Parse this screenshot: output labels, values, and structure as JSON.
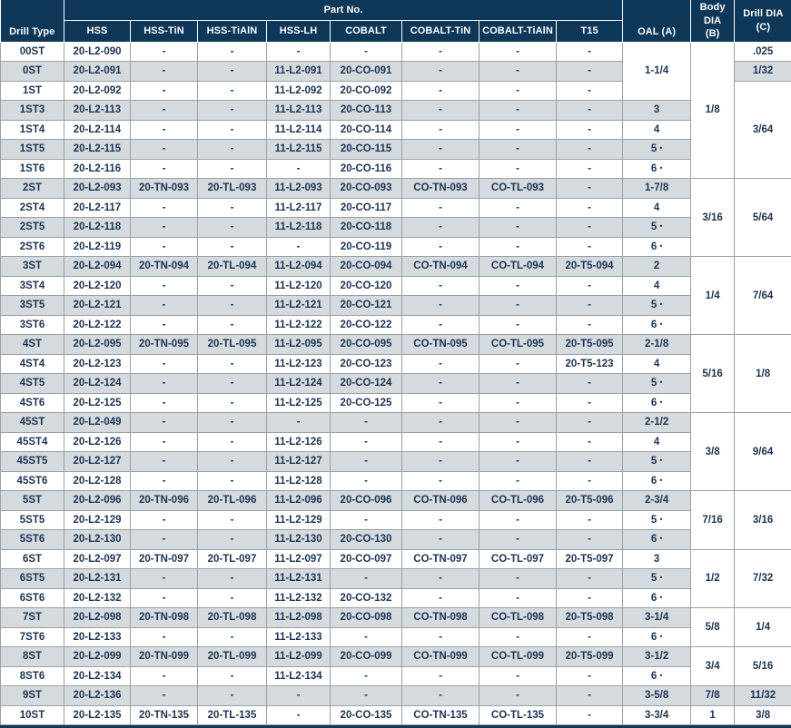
{
  "table": {
    "header": {
      "drill_type": "Drill Type",
      "part_group": "Part No.",
      "part_columns": [
        "HSS",
        "HSS-TiN",
        "HSS-TiAlN",
        "HSS-LH",
        "COBALT",
        "COBALT-TiN",
        "COBALT-TiAlN",
        "T15"
      ],
      "oal": "OAL (A)",
      "body_dia": "Body DIA\n(B)",
      "drill_dia": "Drill DIA\n(C)"
    },
    "colors": {
      "header_bg": "#0e3859",
      "row_alt_bg": "#d4dade",
      "grid_line": "#99a1a7",
      "text": "#1c3453"
    },
    "rows": [
      {
        "type": "00ST",
        "parts": [
          "20-L2-090",
          "-",
          "-",
          "-",
          "-",
          "-",
          "-",
          "-"
        ],
        "oal": {
          "v": "1-1/4",
          "span": 3
        },
        "body": {
          "v": "1/8",
          "span": 7
        },
        "drill": {
          "v": ".025",
          "span": 1
        }
      },
      {
        "type": "0ST",
        "parts": [
          "20-L2-091",
          "-",
          "-",
          "11-L2-091",
          "20-CO-091",
          "-",
          "-",
          "-"
        ],
        "drill": {
          "v": "1/32",
          "span": 1
        }
      },
      {
        "type": "1ST",
        "parts": [
          "20-L2-092",
          "-",
          "-",
          "11-L2-092",
          "20-CO-092",
          "-",
          "-",
          "-"
        ],
        "drill": {
          "v": "3/64",
          "span": 5
        }
      },
      {
        "type": "1ST3",
        "parts": [
          "20-L2-113",
          "-",
          "-",
          "11-L2-113",
          "20-CO-113",
          "-",
          "-",
          "-"
        ],
        "oal": {
          "v": "3",
          "span": 1
        }
      },
      {
        "type": "1ST4",
        "parts": [
          "20-L2-114",
          "-",
          "-",
          "11-L2-114",
          "20-CO-114",
          "-",
          "-",
          "-"
        ],
        "oal": {
          "v": "4",
          "span": 1
        }
      },
      {
        "type": "1ST5",
        "parts": [
          "20-L2-115",
          "-",
          "-",
          "11-L2-115",
          "20-CO-115",
          "-",
          "-",
          "-"
        ],
        "oal": {
          "v": "5 •",
          "span": 1
        }
      },
      {
        "type": "1ST6",
        "parts": [
          "20-L2-116",
          "-",
          "-",
          "-",
          "20-CO-116",
          "-",
          "-",
          "-"
        ],
        "oal": {
          "v": "6 •",
          "span": 1
        }
      },
      {
        "type": "2ST",
        "parts": [
          "20-L2-093",
          "20-TN-093",
          "20-TL-093",
          "11-L2-093",
          "20-CO-093",
          "CO-TN-093",
          "CO-TL-093",
          "-"
        ],
        "oal": {
          "v": "1-7/8",
          "span": 1
        },
        "body": {
          "v": "3/16",
          "span": 4
        },
        "drill": {
          "v": "5/64",
          "span": 4
        }
      },
      {
        "type": "2ST4",
        "parts": [
          "20-L2-117",
          "-",
          "-",
          "11-L2-117",
          "20-CO-117",
          "-",
          "-",
          "-"
        ],
        "oal": {
          "v": "4",
          "span": 1
        }
      },
      {
        "type": "2ST5",
        "parts": [
          "20-L2-118",
          "-",
          "-",
          "11-L2-118",
          "20-CO-118",
          "-",
          "-",
          "-"
        ],
        "oal": {
          "v": "5 •",
          "span": 1
        }
      },
      {
        "type": "2ST6",
        "parts": [
          "20-L2-119",
          "-",
          "-",
          "-",
          "20-CO-119",
          "-",
          "-",
          "-"
        ],
        "oal": {
          "v": "6 •",
          "span": 1
        }
      },
      {
        "type": "3ST",
        "parts": [
          "20-L2-094",
          "20-TN-094",
          "20-TL-094",
          "11-L2-094",
          "20-CO-094",
          "CO-TN-094",
          "CO-TL-094",
          "20-T5-094"
        ],
        "oal": {
          "v": "2",
          "span": 1
        },
        "body": {
          "v": "1/4",
          "span": 4
        },
        "drill": {
          "v": "7/64",
          "span": 4
        }
      },
      {
        "type": "3ST4",
        "parts": [
          "20-L2-120",
          "-",
          "-",
          "11-L2-120",
          "20-CO-120",
          "-",
          "-",
          "-"
        ],
        "oal": {
          "v": "4",
          "span": 1
        }
      },
      {
        "type": "3ST5",
        "parts": [
          "20-L2-121",
          "-",
          "-",
          "11-L2-121",
          "20-CO-121",
          "-",
          "-",
          "-"
        ],
        "oal": {
          "v": "5 •",
          "span": 1
        }
      },
      {
        "type": "3ST6",
        "parts": [
          "20-L2-122",
          "-",
          "-",
          "11-L2-122",
          "20-CO-122",
          "-",
          "-",
          "-"
        ],
        "oal": {
          "v": "6 •",
          "span": 1
        }
      },
      {
        "type": "4ST",
        "parts": [
          "20-L2-095",
          "20-TN-095",
          "20-TL-095",
          "11-L2-095",
          "20-CO-095",
          "CO-TN-095",
          "CO-TL-095",
          "20-T5-095"
        ],
        "oal": {
          "v": "2-1/8",
          "span": 1
        },
        "body": {
          "v": "5/16",
          "span": 4
        },
        "drill": {
          "v": "1/8",
          "span": 4
        }
      },
      {
        "type": "4ST4",
        "parts": [
          "20-L2-123",
          "-",
          "-",
          "11-L2-123",
          "20-CO-123",
          "-",
          "-",
          "20-T5-123"
        ],
        "oal": {
          "v": "4",
          "span": 1
        }
      },
      {
        "type": "4ST5",
        "parts": [
          "20-L2-124",
          "-",
          "-",
          "11-L2-124",
          "20-CO-124",
          "-",
          "-",
          "-"
        ],
        "oal": {
          "v": "5 •",
          "span": 1
        }
      },
      {
        "type": "4ST6",
        "parts": [
          "20-L2-125",
          "-",
          "-",
          "11-L2-125",
          "20-CO-125",
          "-",
          "-",
          "-"
        ],
        "oal": {
          "v": "6 •",
          "span": 1
        }
      },
      {
        "type": "45ST",
        "parts": [
          "20-L2-049",
          "-",
          "-",
          "-",
          "-",
          "-",
          "-",
          "-"
        ],
        "oal": {
          "v": "2-1/2",
          "span": 1
        },
        "body": {
          "v": "3/8",
          "span": 4
        },
        "drill": {
          "v": "9/64",
          "span": 4
        }
      },
      {
        "type": "45ST4",
        "parts": [
          "20-L2-126",
          "-",
          "-",
          "11-L2-126",
          "-",
          "-",
          "-",
          "-"
        ],
        "oal": {
          "v": "4",
          "span": 1
        }
      },
      {
        "type": "45ST5",
        "parts": [
          "20-L2-127",
          "-",
          "-",
          "11-L2-127",
          "-",
          "-",
          "-",
          "-"
        ],
        "oal": {
          "v": "5 •",
          "span": 1
        }
      },
      {
        "type": "45ST6",
        "parts": [
          "20-L2-128",
          "-",
          "-",
          "11-L2-128",
          "-",
          "-",
          "-",
          "-"
        ],
        "oal": {
          "v": "6 •",
          "span": 1
        }
      },
      {
        "type": "5ST",
        "parts": [
          "20-L2-096",
          "20-TN-096",
          "20-TL-096",
          "11-L2-096",
          "20-CO-096",
          "CO-TN-096",
          "CO-TL-096",
          "20-T5-096"
        ],
        "oal": {
          "v": "2-3/4",
          "span": 1
        },
        "body": {
          "v": "7/16",
          "span": 3
        },
        "drill": {
          "v": "3/16",
          "span": 3
        }
      },
      {
        "type": "5ST5",
        "parts": [
          "20-L2-129",
          "-",
          "-",
          "11-L2-129",
          "-",
          "-",
          "-",
          "-"
        ],
        "oal": {
          "v": "5 •",
          "span": 1
        }
      },
      {
        "type": "5ST6",
        "parts": [
          "20-L2-130",
          "-",
          "-",
          "11-L2-130",
          "20-CO-130",
          "-",
          "-",
          "-"
        ],
        "oal": {
          "v": "6 •",
          "span": 1
        }
      },
      {
        "type": "6ST",
        "parts": [
          "20-L2-097",
          "20-TN-097",
          "20-TL-097",
          "11-L2-097",
          "20-CO-097",
          "CO-TN-097",
          "CO-TL-097",
          "20-T5-097"
        ],
        "oal": {
          "v": "3",
          "span": 1
        },
        "body": {
          "v": "1/2",
          "span": 3
        },
        "drill": {
          "v": "7/32",
          "span": 3
        }
      },
      {
        "type": "6ST5",
        "parts": [
          "20-L2-131",
          "-",
          "-",
          "11-L2-131",
          "-",
          "-",
          "-",
          "-"
        ],
        "oal": {
          "v": "5 •",
          "span": 1
        }
      },
      {
        "type": "6ST6",
        "parts": [
          "20-L2-132",
          "-",
          "-",
          "11-L2-132",
          "20-CO-132",
          "-",
          "-",
          "-"
        ],
        "oal": {
          "v": "6 •",
          "span": 1
        }
      },
      {
        "type": "7ST",
        "parts": [
          "20-L2-098",
          "20-TN-098",
          "20-TL-098",
          "11-L2-098",
          "20-CO-098",
          "CO-TN-098",
          "CO-TL-098",
          "20-T5-098"
        ],
        "oal": {
          "v": "3-1/4",
          "span": 1
        },
        "body": {
          "v": "5/8",
          "span": 2
        },
        "drill": {
          "v": "1/4",
          "span": 2
        }
      },
      {
        "type": "7ST6",
        "parts": [
          "20-L2-133",
          "-",
          "-",
          "11-L2-133",
          "-",
          "-",
          "-",
          "-"
        ],
        "oal": {
          "v": "6 •",
          "span": 1
        }
      },
      {
        "type": "8ST",
        "parts": [
          "20-L2-099",
          "20-TN-099",
          "20-TL-099",
          "11-L2-099",
          "20-CO-099",
          "CO-TN-099",
          "CO-TL-099",
          "20-T5-099"
        ],
        "oal": {
          "v": "3-1/2",
          "span": 1
        },
        "body": {
          "v": "3/4",
          "span": 2
        },
        "drill": {
          "v": "5/16",
          "span": 2
        }
      },
      {
        "type": "8ST6",
        "parts": [
          "20-L2-134",
          "-",
          "-",
          "11-L2-134",
          "-",
          "-",
          "-",
          "-"
        ],
        "oal": {
          "v": "6 •",
          "span": 1
        }
      },
      {
        "type": "9ST",
        "parts": [
          "20-L2-136",
          "-",
          "-",
          "-",
          "-",
          "-",
          "-",
          "-"
        ],
        "oal": {
          "v": "3-5/8",
          "span": 1
        },
        "body": {
          "v": "7/8",
          "span": 1
        },
        "drill": {
          "v": "11/32",
          "span": 1
        }
      },
      {
        "type": "10ST",
        "parts": [
          "20-L2-135",
          "20-TN-135",
          "20-TL-135",
          "-",
          "20-CO-135",
          "CO-TN-135",
          "CO-TL-135",
          "-"
        ],
        "oal": {
          "v": "3-3/4",
          "span": 1
        },
        "body": {
          "v": "1",
          "span": 1
        },
        "drill": {
          "v": "3/8",
          "span": 1
        }
      }
    ]
  }
}
